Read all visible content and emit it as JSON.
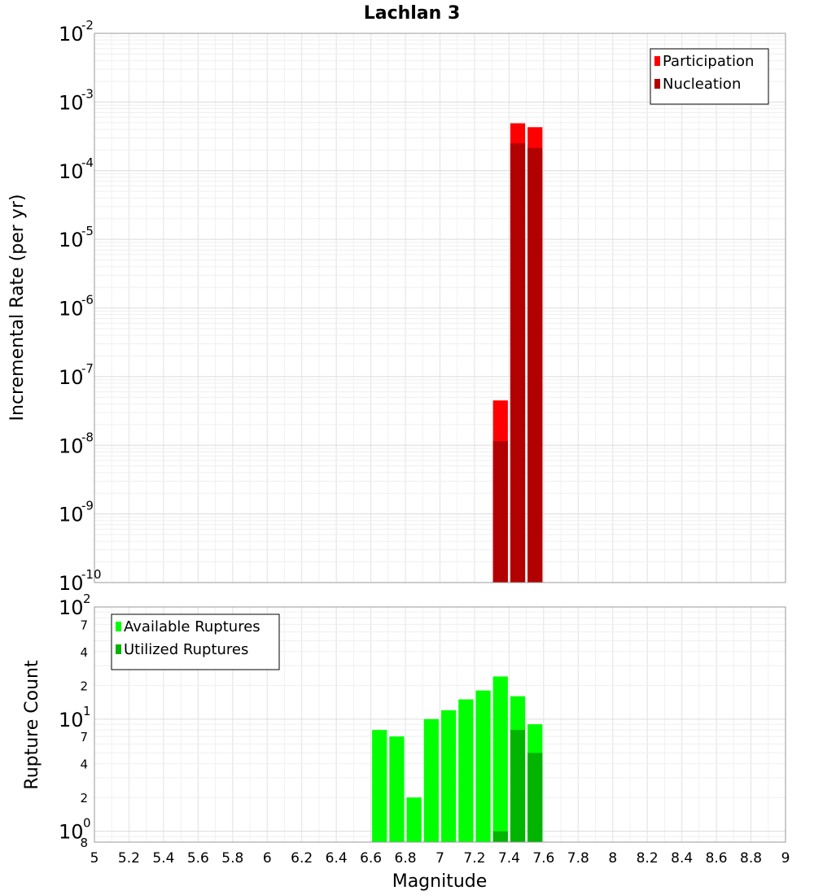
{
  "chart_data": [
    {
      "type": "bar",
      "title": "Lachlan 3",
      "xlabel": "Magnitude",
      "ylabel": "Incremental Rate (per yr)",
      "yscale": "log",
      "ylim": [
        1e-10,
        0.01
      ],
      "xlim": [
        5,
        9
      ],
      "bar_width": 0.1,
      "y_decades": [
        {
          "base": "10",
          "exp": "-10"
        },
        {
          "base": "10",
          "exp": "-9"
        },
        {
          "base": "10",
          "exp": "-8"
        },
        {
          "base": "10",
          "exp": "-7"
        },
        {
          "base": "10",
          "exp": "-6"
        },
        {
          "base": "10",
          "exp": "-5"
        },
        {
          "base": "10",
          "exp": "-4"
        },
        {
          "base": "10",
          "exp": "-3"
        },
        {
          "base": "10",
          "exp": "-2"
        }
      ],
      "legend": {
        "position": "top-right",
        "entries": [
          "Participation",
          "Nucleation"
        ]
      },
      "series": [
        {
          "name": "Participation",
          "color": "#ff0000",
          "x": [
            7.35,
            7.45,
            7.55
          ],
          "values": [
            4.5e-08,
            0.00049,
            0.00043
          ]
        },
        {
          "name": "Nucleation",
          "color": "#b20000",
          "x": [
            7.35,
            7.45,
            7.55
          ],
          "values": [
            1.15e-08,
            0.00025,
            0.000215
          ]
        }
      ]
    },
    {
      "type": "bar",
      "xlabel": "Magnitude",
      "ylabel": "Rupture Count",
      "yscale": "log",
      "ylim": [
        0.8,
        100
      ],
      "xlim": [
        5,
        9
      ],
      "bar_width": 0.1,
      "y_decades": [
        {
          "base": "10",
          "exp": "0",
          "value": 1
        },
        {
          "base": "10",
          "exp": "1",
          "value": 10
        },
        {
          "base": "10",
          "exp": "2",
          "value": 100
        }
      ],
      "y_minor_labels": [
        "8",
        "2",
        "4",
        "7",
        "2",
        "4",
        "7"
      ],
      "y_minor_values": [
        0.8,
        2,
        4,
        7,
        20,
        40,
        70
      ],
      "x_ticks": [
        "5",
        "5.2",
        "5.4",
        "5.6",
        "5.8",
        "6",
        "6.2",
        "6.4",
        "6.6",
        "6.8",
        "7",
        "7.2",
        "7.4",
        "7.6",
        "7.8",
        "8",
        "8.2",
        "8.4",
        "8.6",
        "8.8",
        "9"
      ],
      "legend": {
        "position": "top-left",
        "entries": [
          "Available Ruptures",
          "Utilized Ruptures"
        ]
      },
      "series": [
        {
          "name": "Available Ruptures",
          "color": "#00ff00",
          "x": [
            6.65,
            6.75,
            6.85,
            6.95,
            7.05,
            7.15,
            7.25,
            7.35,
            7.45,
            7.55
          ],
          "values": [
            8,
            7,
            2,
            10,
            12,
            15,
            18,
            24,
            16,
            9
          ]
        },
        {
          "name": "Utilized Ruptures",
          "color": "#00b400",
          "x": [
            7.35,
            7.45,
            7.55
          ],
          "values": [
            1,
            8,
            5
          ]
        }
      ]
    }
  ]
}
